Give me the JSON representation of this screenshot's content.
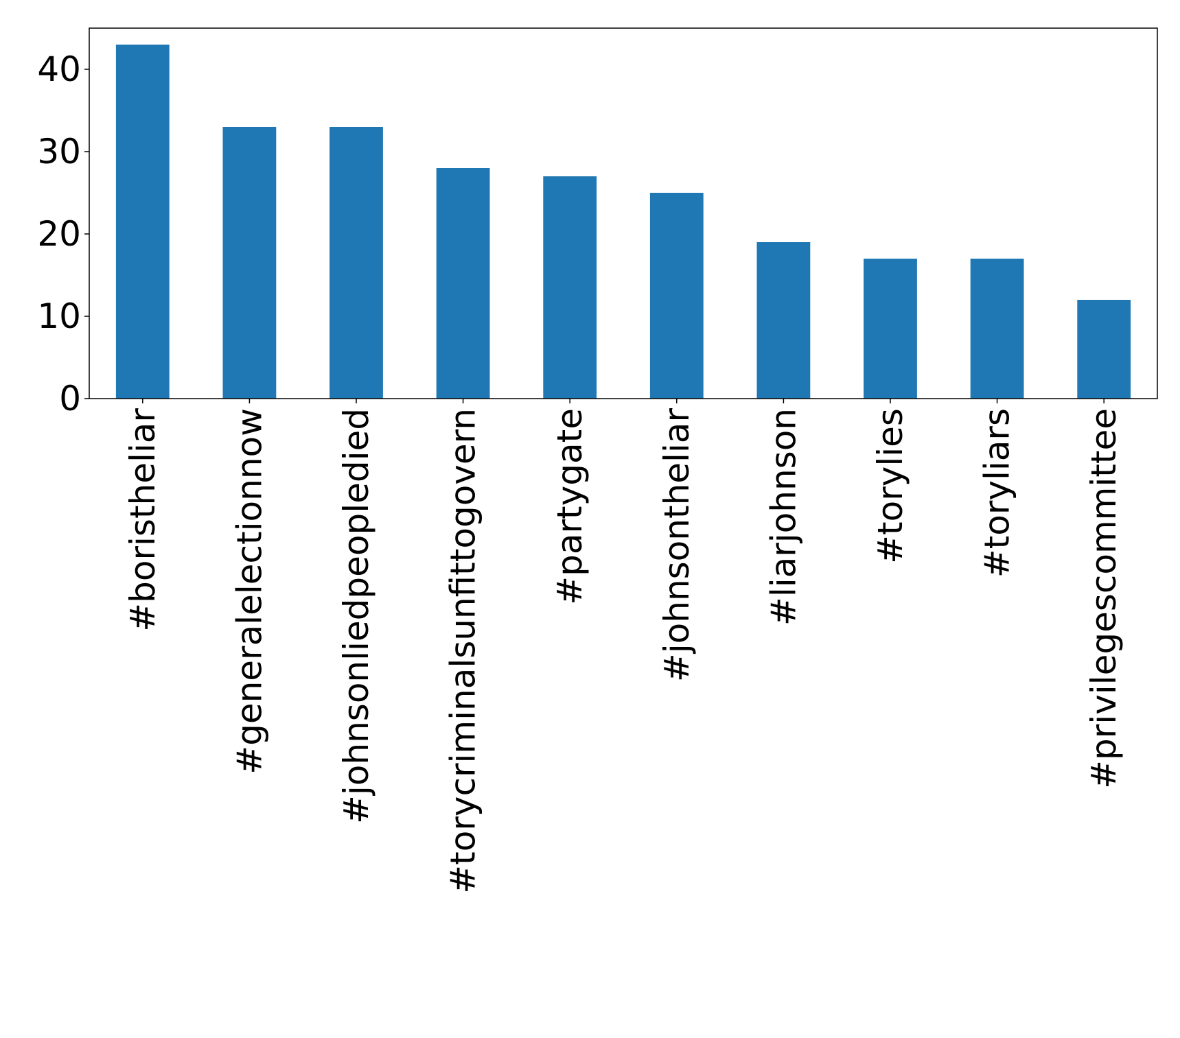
{
  "chart_data": {
    "type": "bar",
    "categories": [
      "#boristheliar",
      "#generalelectionnow",
      "#johnsonliedpeopledied",
      "#torycriminalsunfittogovern",
      "#partygate",
      "#johnsontheliar",
      "#liarjohnson",
      "#torylies",
      "#toryliars",
      "#privilegescommittee"
    ],
    "values": [
      43,
      33,
      33,
      28,
      27,
      25,
      19,
      17,
      17,
      12
    ],
    "title": "",
    "xlabel": "",
    "ylabel": "",
    "ylim": [
      0,
      45
    ],
    "yticks": [
      0,
      10,
      20,
      30,
      40
    ],
    "grid": false,
    "colors": {
      "bar": "#1f77b4",
      "axis": "#000000",
      "background": "#ffffff"
    }
  }
}
